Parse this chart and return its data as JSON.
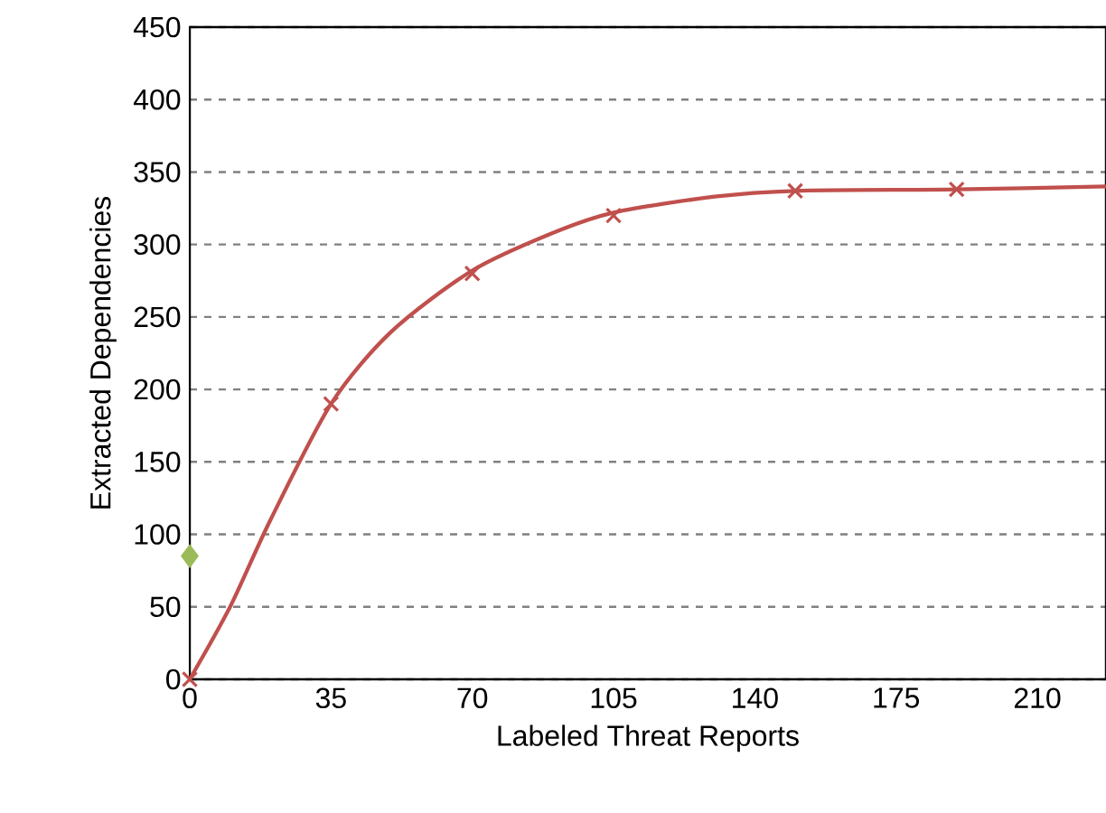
{
  "chart_data": {
    "type": "line",
    "xlabel": "Labeled Threat Reports",
    "ylabel": "Extracted Dependencies",
    "xlim": [
      0,
      227
    ],
    "ylim": [
      0,
      450
    ],
    "xticks": [
      0,
      35,
      70,
      105,
      140,
      175,
      210
    ],
    "yticks": [
      0,
      50,
      100,
      150,
      200,
      250,
      300,
      350,
      400,
      450
    ],
    "grid": "y",
    "series": [
      {
        "color": "#c0504d",
        "marker": "none",
        "x": [
          0,
          10,
          20,
          35,
          50,
          70,
          90,
          105,
          130,
          150,
          190,
          227
        ],
        "values": [
          0,
          50,
          110,
          190,
          240,
          282,
          308,
          322,
          333,
          337,
          338,
          340
        ]
      },
      {
        "type": "scatter",
        "color": "#c0504d",
        "marker": "cross",
        "x": [
          0,
          35,
          70,
          105,
          150,
          190
        ],
        "values": [
          0,
          190,
          280,
          320,
          337,
          338
        ]
      },
      {
        "type": "scatter",
        "color": "#9bbb59",
        "marker": "diamond",
        "x": [
          0
        ],
        "values": [
          85
        ]
      }
    ]
  }
}
